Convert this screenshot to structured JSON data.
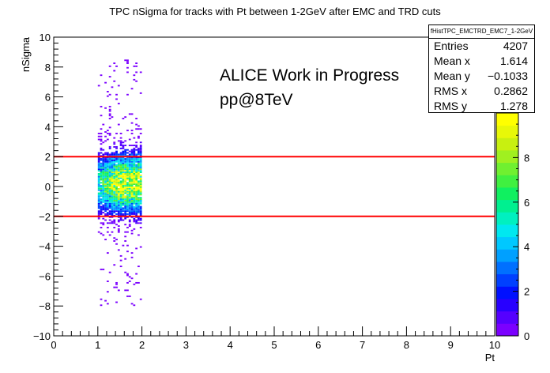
{
  "chart_data": {
    "type": "heatmap",
    "title": "TPC nSigma for tracks with Pt between 1-2GeV after EMC and TRD cuts",
    "xlabel": "Pt",
    "ylabel": "nSigma",
    "xlim": [
      0,
      10
    ],
    "ylim": [
      -10,
      10
    ],
    "x_ticks": [
      "0",
      "1",
      "2",
      "3",
      "4",
      "5",
      "6",
      "7",
      "8",
      "9",
      "10"
    ],
    "y_ticks": [
      "−10",
      "−8",
      "−6",
      "−4",
      "−2",
      "0",
      "2",
      "4",
      "6",
      "8",
      "10"
    ],
    "cut_lines": [
      2,
      -2
    ],
    "cut_line_color": "#ff0000",
    "occupied_x_range": [
      1.0,
      2.0
    ],
    "approx_peak_nsigma": 0.2,
    "colorbar": {
      "range": [
        0,
        10
      ],
      "labels": [
        "0",
        "2",
        "4",
        "6",
        "8"
      ],
      "colors": [
        "#7b00ff",
        "#5500ff",
        "#2800ff",
        "#0010ff",
        "#0040ff",
        "#0070ff",
        "#00a0ff",
        "#00c8ff",
        "#00e8f0",
        "#00f0c0",
        "#00f090",
        "#10f060",
        "#40f040",
        "#70f030",
        "#a0f020",
        "#c8f010",
        "#e8f808",
        "#ffff00"
      ]
    },
    "stats": {
      "name": "fHistTPC_EMCTRD_EMC7_1-2GeV",
      "rows": [
        {
          "label": "Entries",
          "value": "4207"
        },
        {
          "label": "Mean x",
          "value": "1.614"
        },
        {
          "label": "Mean y",
          "value": "−0.1033"
        },
        {
          "label": "RMS x",
          "value": "0.2862"
        },
        {
          "label": "RMS y",
          "value": "1.278"
        }
      ]
    },
    "annotations": [
      "ALICE Work in Progress",
      "pp@8TeV"
    ]
  }
}
